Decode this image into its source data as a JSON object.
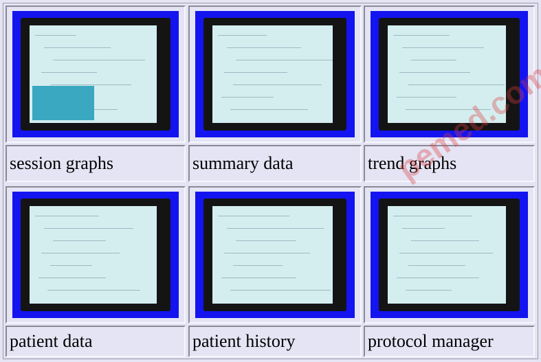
{
  "gallery": {
    "items": [
      {
        "caption": "session graphs"
      },
      {
        "caption": "summary data"
      },
      {
        "caption": "trend graphs"
      },
      {
        "caption": "patient data"
      },
      {
        "caption": "patient history"
      },
      {
        "caption": "protocol manager"
      }
    ]
  },
  "watermark": {
    "text": "pemed.com"
  }
}
